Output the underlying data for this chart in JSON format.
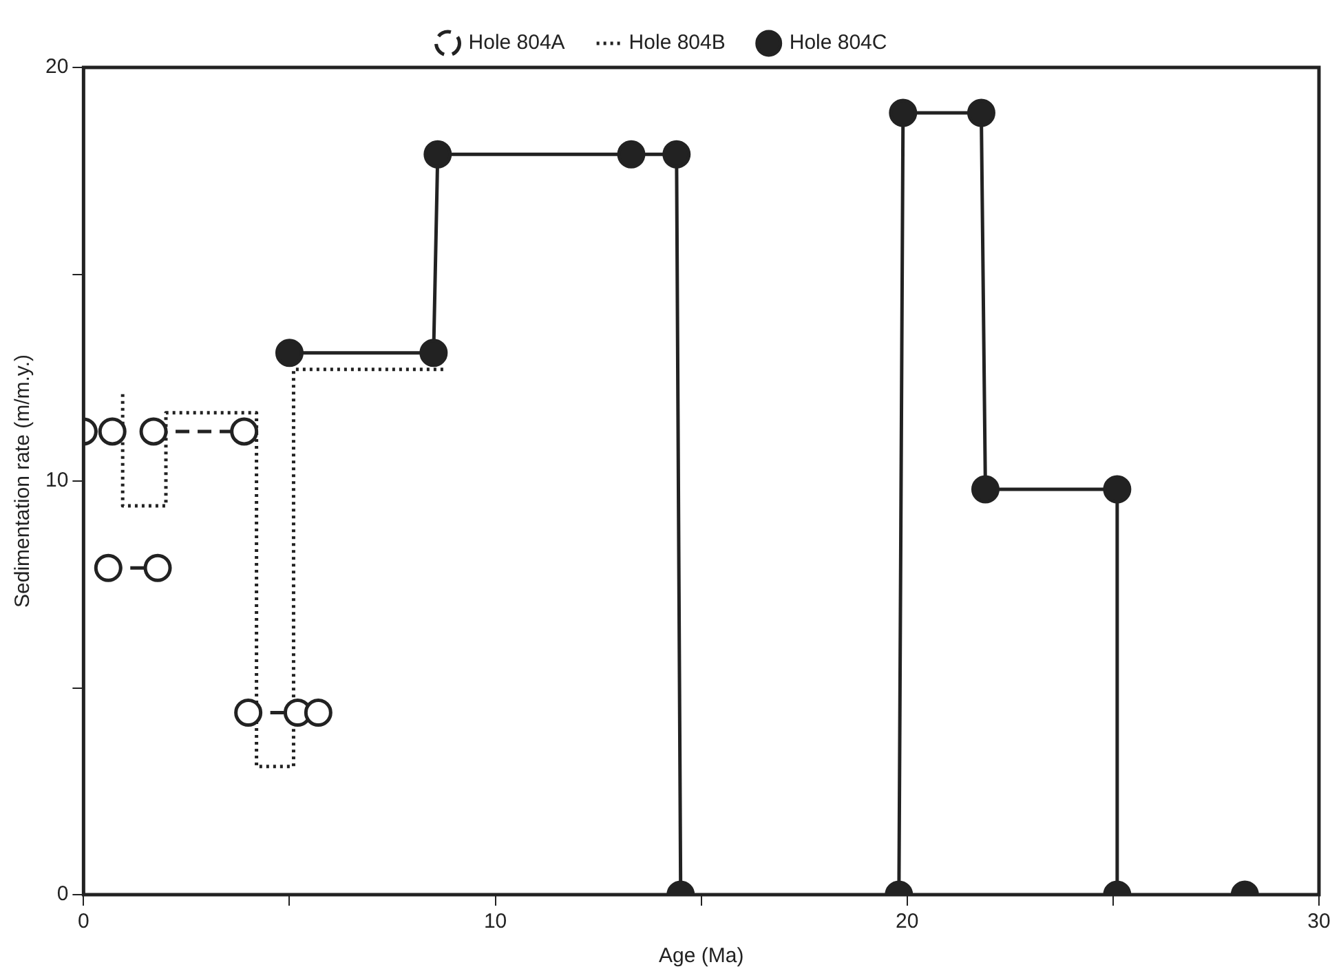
{
  "chart_data": {
    "type": "line",
    "xlabel": "Age (Ma)",
    "ylabel": "Sedimentation rate (m/m.y.)",
    "xlim": [
      0,
      30
    ],
    "xticks": [
      0,
      {
        "value": 5,
        "label": null
      },
      10,
      {
        "value": 15,
        "label": null
      },
      20,
      {
        "value": 25,
        "label": null
      },
      30
    ],
    "ylim": [
      0,
      20
    ],
    "yticks": [
      0,
      {
        "value": 5,
        "label": null
      },
      10,
      {
        "value": 15,
        "label": null
      },
      20
    ],
    "grid": false,
    "legend": "top",
    "series": [
      {
        "name": "Hole 804A",
        "color": "#222222",
        "marker": "circle",
        "line_style": "dashed",
        "x": [
          0,
          0.7,
          null,
          0.6,
          1.8,
          null,
          1.7,
          3.9,
          null,
          4.0,
          5.2,
          5.7
        ],
        "values": [
          11.2,
          11.2,
          null,
          7.9,
          7.9,
          null,
          11.2,
          11.2,
          null,
          4.4,
          4.4,
          4.4
        ]
      },
      {
        "name": "Hole 804B",
        "color": "#222222",
        "marker": "none",
        "line_style": "dotted",
        "x": [
          0.95,
          0.95,
          2.0,
          2.0,
          4.2,
          4.2,
          5.1,
          5.1,
          8.75
        ],
        "values": [
          12.1,
          9.4,
          9.4,
          11.65,
          11.65,
          3.1,
          3.1,
          12.7,
          12.7
        ]
      },
      {
        "name": "Hole 804C",
        "color": "#222222",
        "marker": "circle",
        "line_style": "solid",
        "x": [
          5.0,
          8.5,
          8.6,
          13.3,
          14.4,
          14.5,
          null,
          19.8,
          19.9,
          21.8,
          21.9,
          25.1,
          25.1,
          null,
          28.2
        ],
        "values": [
          13.1,
          13.1,
          17.9,
          17.9,
          17.9,
          0,
          null,
          0,
          18.9,
          18.9,
          9.8,
          9.8,
          0,
          null,
          0
        ]
      }
    ]
  }
}
